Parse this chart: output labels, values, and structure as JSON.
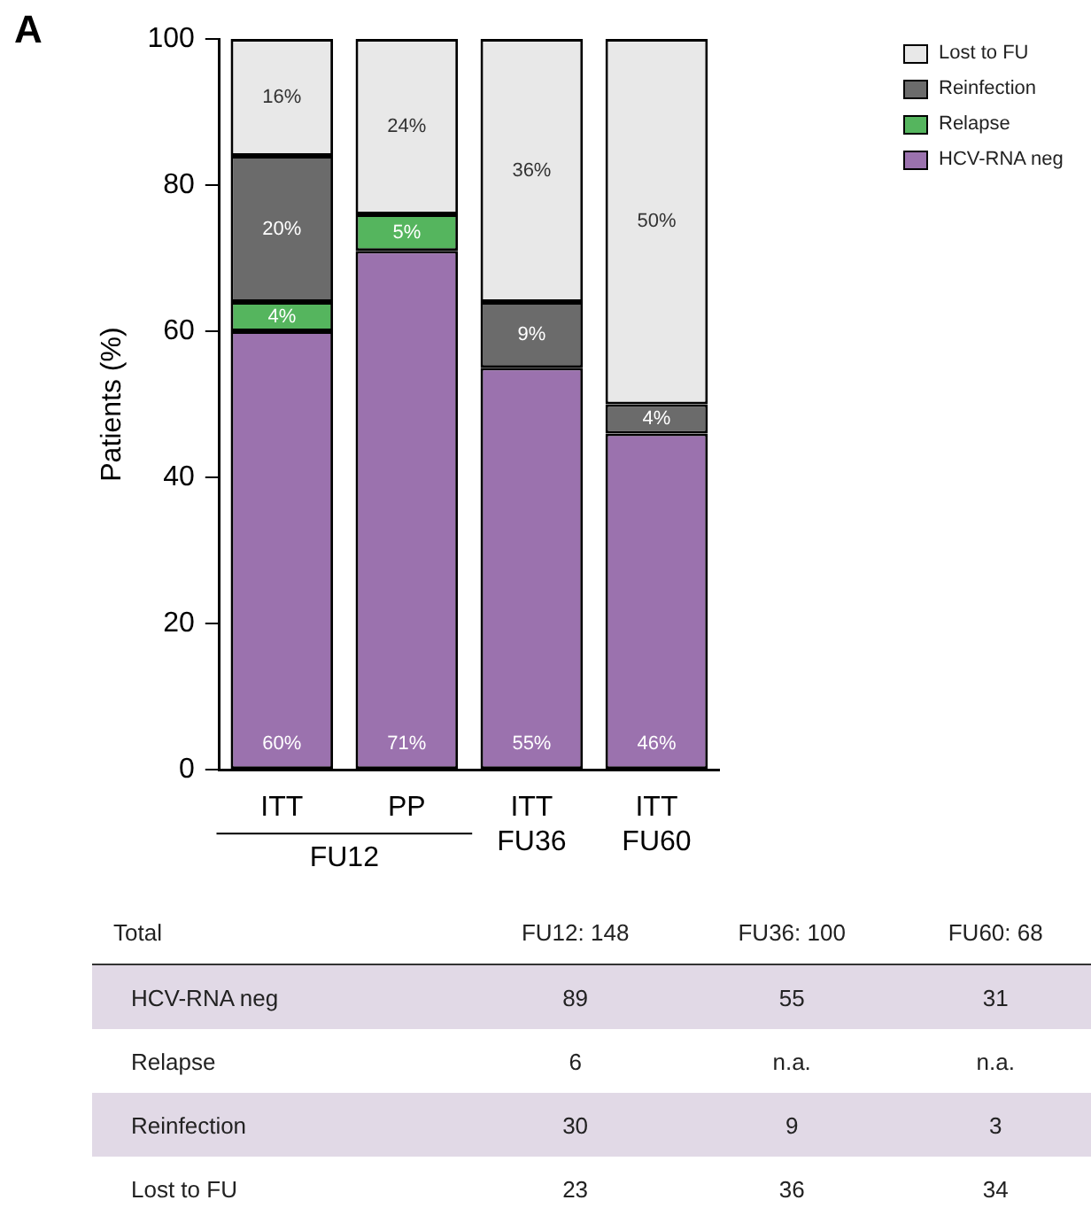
{
  "chart_data": {
    "type": "bar",
    "stacked": true,
    "ylabel": "Patients (%)",
    "categories": [
      "ITT",
      "PP",
      "ITT\nFU36",
      "ITT\nFU60"
    ],
    "series": [
      {
        "name": "HCV-RNA neg",
        "color": "#9b72ae",
        "values": [
          60,
          71,
          55,
          46
        ],
        "value_labels": [
          "60%",
          "71%",
          "55%",
          "46%"
        ]
      },
      {
        "name": "Relapse",
        "color": "#55b55e",
        "values": [
          4,
          5,
          null,
          null
        ],
        "value_labels": [
          "4%",
          "5%",
          null,
          null
        ]
      },
      {
        "name": "Reinfection",
        "color": "#6b6b6b",
        "values": [
          20,
          null,
          9,
          4
        ],
        "value_labels": [
          "20%",
          null,
          "9%",
          "4%"
        ]
      },
      {
        "name": "Lost to FU",
        "color": "#e8e8e8",
        "values": [
          16,
          24,
          36,
          50
        ],
        "value_labels": [
          "16%",
          "24%",
          "36%",
          "50%"
        ]
      }
    ],
    "ylim": [
      0,
      100
    ],
    "yticks": [
      0,
      20,
      40,
      60,
      80,
      100
    ],
    "grid": false,
    "legend": "top right",
    "annotations": [
      "A",
      "FU12",
      "Total",
      "FU12: 148",
      "FU36: 100",
      "FU60: 68",
      "HCV-RNA neg",
      "89",
      "55",
      "31",
      "Relapse",
      "6",
      "n.a.",
      "n.a.",
      "Reinfection",
      "30",
      "9",
      "3",
      "Lost to FU",
      "23",
      "36",
      "34"
    ]
  }
}
